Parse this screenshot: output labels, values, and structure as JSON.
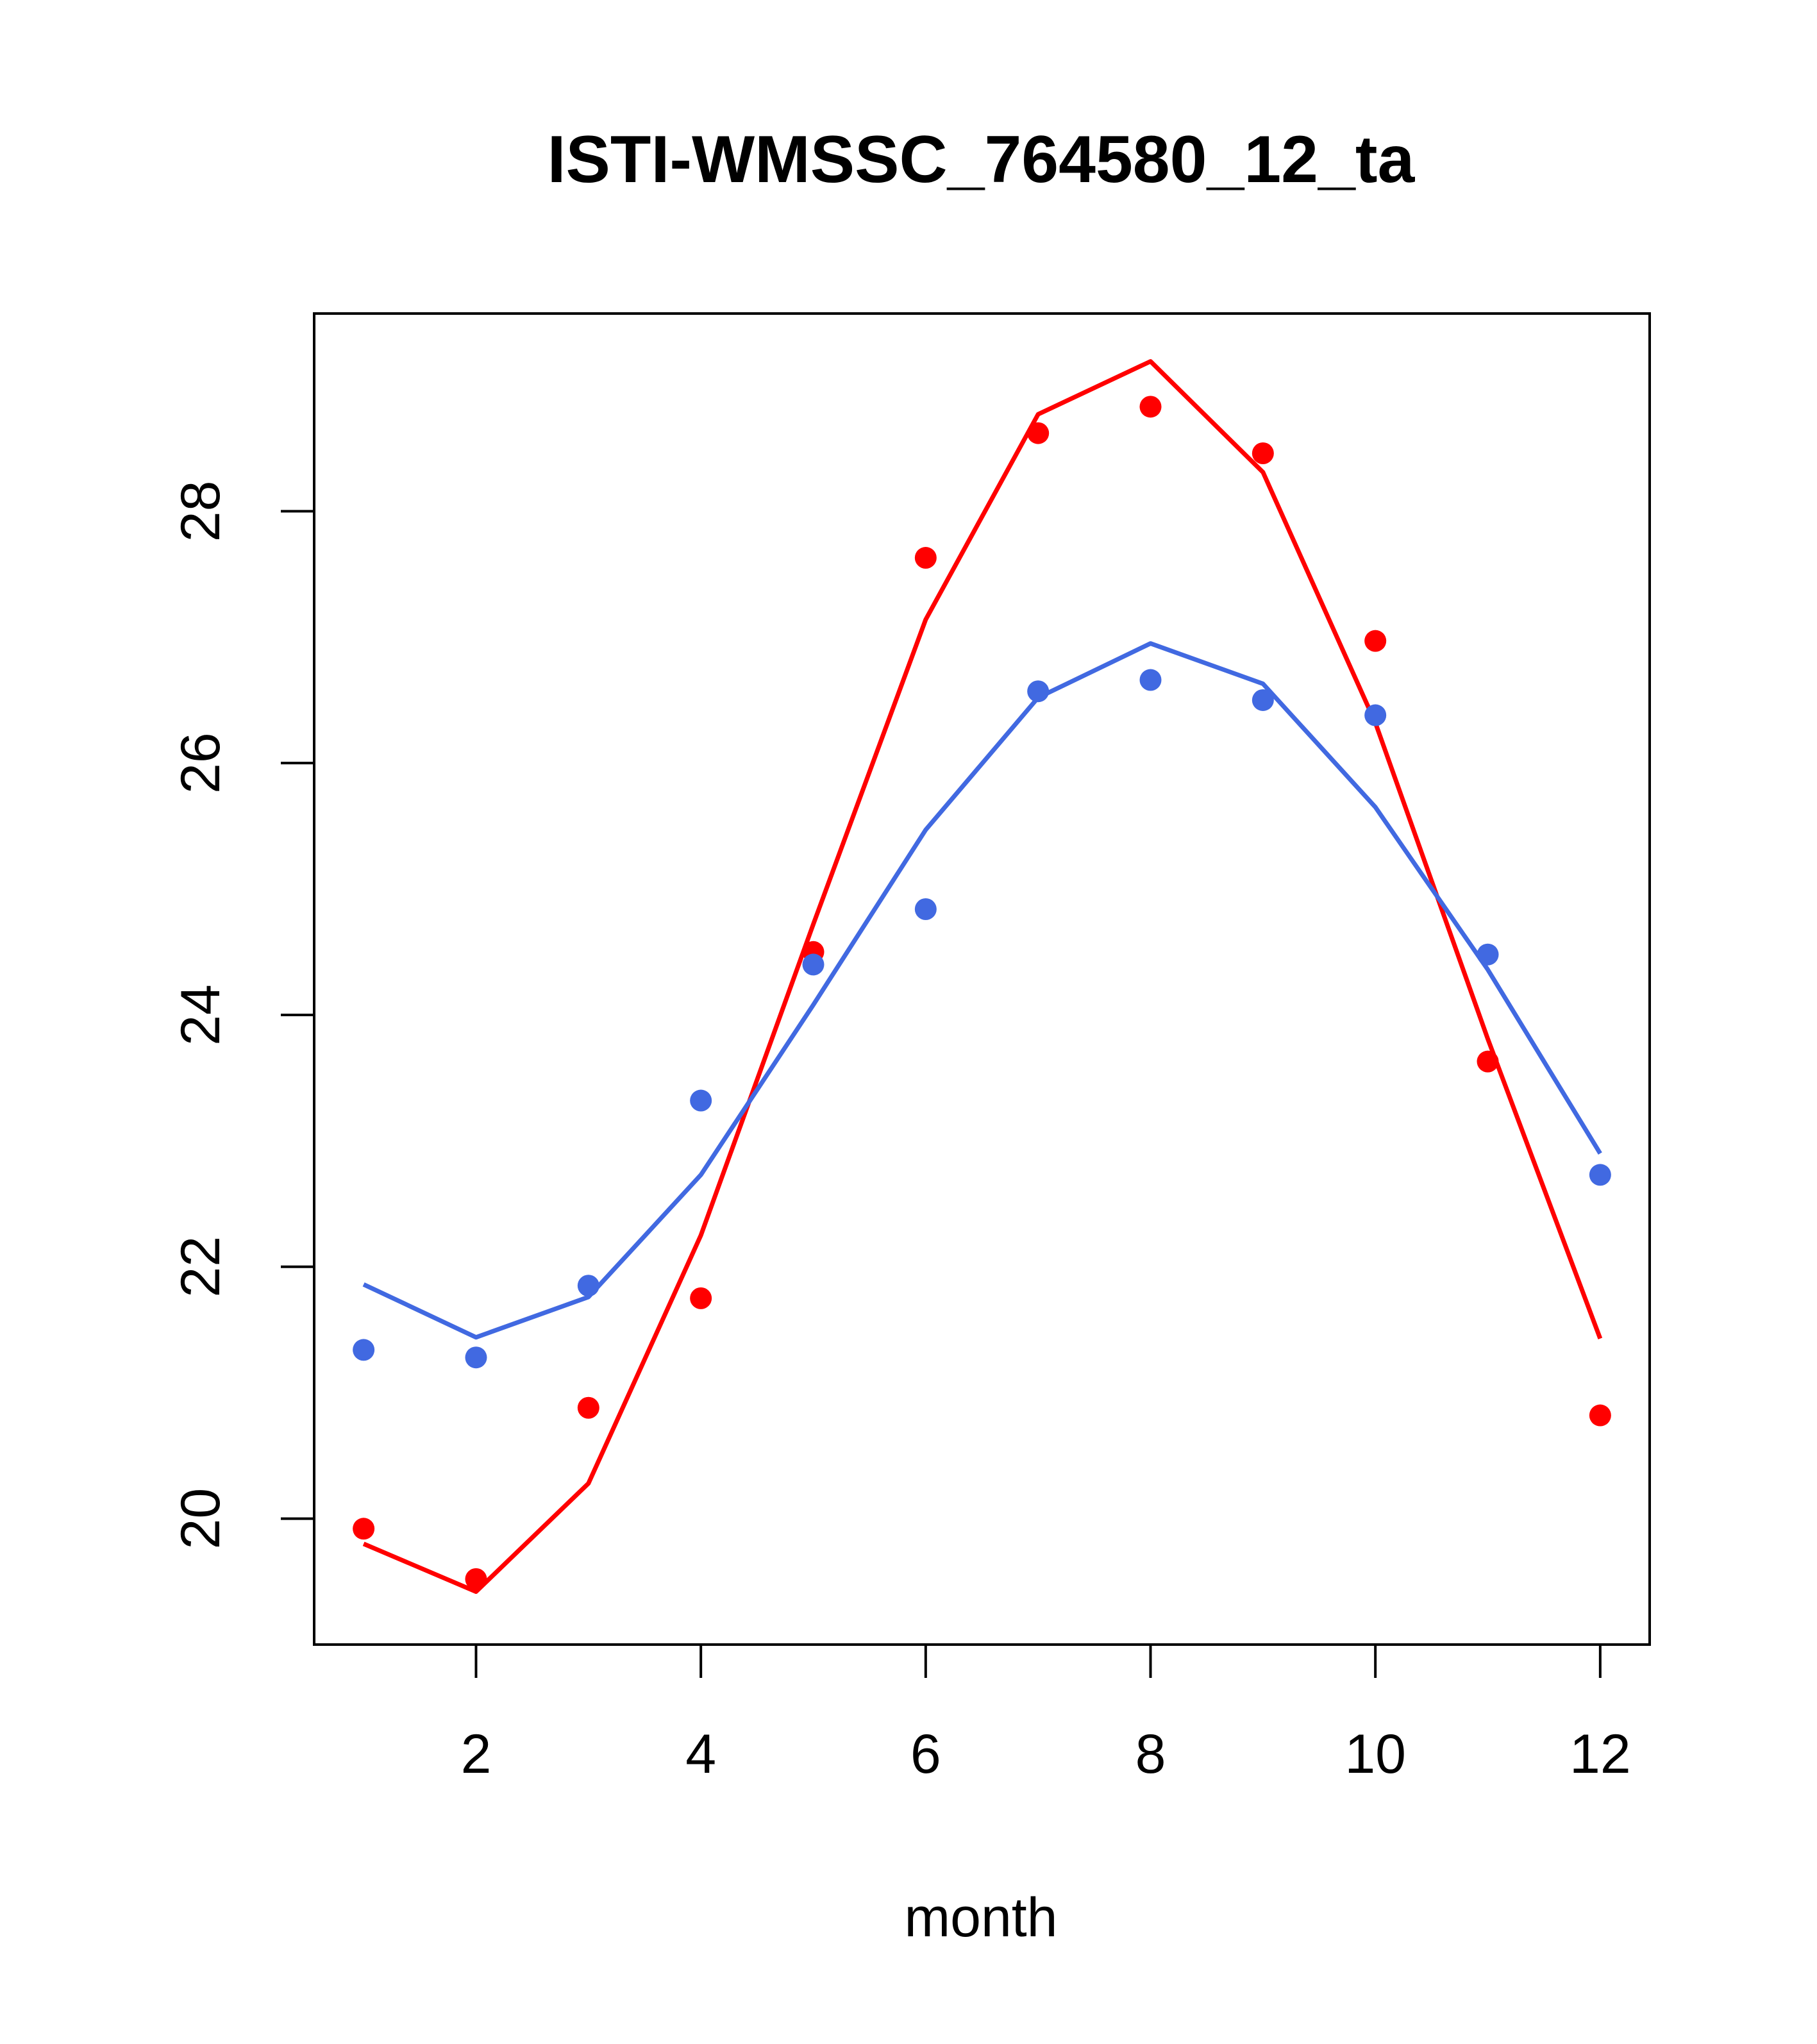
{
  "chart_data": {
    "type": "line",
    "title": "ISTI-WMSSC_764580_12_ta",
    "xlabel": "month",
    "ylabel": "",
    "xlim": [
      0.56,
      12.44
    ],
    "ylim": [
      19.0,
      29.57
    ],
    "x_ticks": [
      2,
      4,
      6,
      8,
      10,
      12
    ],
    "y_ticks": [
      20,
      22,
      24,
      26,
      28
    ],
    "grid": false,
    "legend": "none",
    "x": [
      1,
      2,
      3,
      4,
      5,
      6,
      7,
      8,
      9,
      10,
      11,
      12
    ],
    "series": [
      {
        "color": "#ff0000",
        "points": [
          19.92,
          19.52,
          20.88,
          21.75,
          24.5,
          27.63,
          28.62,
          28.83,
          28.46,
          26.97,
          23.63,
          20.82
        ],
        "line": [
          19.8,
          19.42,
          20.28,
          22.25,
          24.72,
          27.14,
          28.77,
          29.19,
          28.31,
          26.32,
          23.81,
          21.43
        ]
      },
      {
        "color": "#4169e1",
        "points": [
          21.34,
          21.28,
          21.85,
          23.32,
          24.4,
          24.84,
          26.57,
          26.66,
          26.5,
          26.38,
          24.48,
          22.73
        ],
        "line": [
          21.86,
          21.44,
          21.76,
          22.73,
          24.08,
          25.47,
          26.52,
          26.95,
          26.63,
          25.65,
          24.36,
          22.9
        ]
      }
    ]
  }
}
